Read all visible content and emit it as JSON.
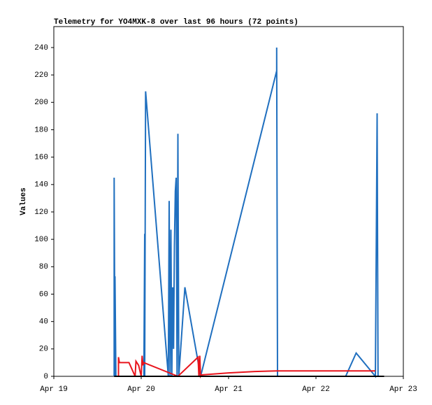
{
  "chart_data": {
    "type": "line",
    "title": "Telemetry for YO4MXK-8 over last 96 hours (72 points)",
    "ylabel": "Values",
    "xlim": [
      0,
      4
    ],
    "ylim": [
      0,
      255.3
    ],
    "xticks": [
      {
        "value": 0,
        "label": "Apr 19"
      },
      {
        "value": 1,
        "label": "Apr 20"
      },
      {
        "value": 2,
        "label": "Apr 21"
      },
      {
        "value": 3,
        "label": "Apr 22"
      },
      {
        "value": 4,
        "label": "Apr 23"
      }
    ],
    "yticks": [
      0,
      20,
      40,
      60,
      80,
      100,
      120,
      140,
      160,
      180,
      200,
      220,
      240
    ],
    "series": [
      {
        "color": "#1f6fbf",
        "x": [
          0.69,
          0.69,
          0.7,
          0.7,
          0.71,
          1.03,
          1.04,
          1.04,
          1.05,
          1.31,
          1.32,
          1.33,
          1.34,
          1.35,
          1.36,
          1.37,
          1.38,
          1.39,
          1.4,
          1.41,
          1.42,
          1.43,
          1.5,
          1.68,
          2.55,
          2.55,
          2.56,
          3.34,
          3.46,
          3.68,
          3.69,
          3.7,
          3.71
        ],
        "values": [
          0,
          145,
          0,
          73,
          0,
          0,
          104,
          0,
          208,
          0,
          128,
          0,
          107,
          0,
          65,
          20,
          95,
          135,
          145,
          0,
          177,
          0,
          65,
          0,
          223,
          240,
          0,
          0,
          17,
          0,
          97,
          192,
          0
        ]
      },
      {
        "color": "#e8141c",
        "x": [
          0.74,
          0.74,
          0.75,
          0.86,
          0.93,
          0.94,
          0.97,
          1.0,
          1.01,
          1.02,
          1.03,
          1.42,
          1.65,
          1.66,
          1.67,
          1.68,
          1.69,
          2.0,
          2.3,
          2.55,
          3.68
        ],
        "values": [
          0,
          14,
          10,
          10,
          0,
          11,
          8,
          0,
          15,
          8,
          10,
          0,
          14,
          0,
          15,
          0,
          1,
          2.5,
          3.5,
          4,
          4
        ]
      },
      {
        "color": "#000000",
        "x": [
          0.69,
          3.78
        ],
        "values": [
          0,
          0
        ]
      }
    ]
  }
}
